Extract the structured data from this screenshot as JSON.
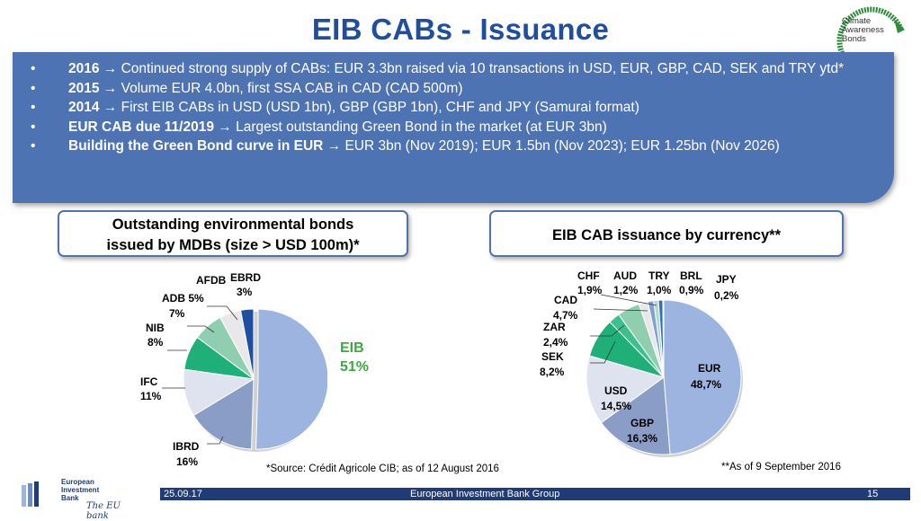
{
  "slide": {
    "title": "EIB CABs - Issuance",
    "logo": {
      "line1": "Climate",
      "line2": "Awareness",
      "line3": "Bonds"
    }
  },
  "bullets": [
    {
      "bold": "2016 →",
      "text": " Continued strong supply of CABs: EUR 3.3bn raised via 10 transactions in USD, EUR, GBP, CAD, SEK and TRY ytd*"
    },
    {
      "bold": "2015 →",
      "text": " Volume EUR 4.0bn, first SSA CAB in CAD (CAD 500m)"
    },
    {
      "bold": "2014 →",
      "text": " First EIB CABs in USD (USD 1bn), GBP (GBP 1bn), CHF and JPY (Samurai format)"
    },
    {
      "bold": "EUR CAB due 11/2019 →",
      "text": " Largest outstanding Green Bond in the market (at EUR 3bn)"
    },
    {
      "bold": "Building the Green Bond curve in EUR →",
      "text": " EUR 3bn (Nov 2019); EUR 1.5bn (Nov 2023); EUR 1.25bn (Nov 2026)"
    }
  ],
  "left_box": {
    "line1": "Outstanding environmental bonds",
    "line2": "issued by MDBs (size > USD 100m)*"
  },
  "right_box": {
    "title": "EIB CAB issuance by currency**"
  },
  "chart_data": [
    {
      "type": "pie",
      "title": "Outstanding environmental bonds issued by MDBs (size > USD 100m)*",
      "slices": [
        {
          "label": "EIB",
          "value": 51,
          "display": "51%",
          "color": "#9db3e0"
        },
        {
          "label": "IBRD",
          "value": 16,
          "display": "16%",
          "color": "#8a9dc7"
        },
        {
          "label": "IFC",
          "value": 11,
          "display": "11%",
          "color": "#dfe3ef"
        },
        {
          "label": "NIB",
          "value": 8,
          "display": "8%",
          "color": "#1fb07a"
        },
        {
          "label": "ADB",
          "value": 7,
          "display": "7%",
          "color": "#8fcfb0"
        },
        {
          "label": "AFDB",
          "value": 5,
          "display": "5%",
          "color": "#e8e8e8"
        },
        {
          "label": "EBRD",
          "value": 3,
          "display": "3%",
          "color": "#1f4fa0"
        }
      ]
    },
    {
      "type": "pie",
      "title": "EIB CAB issuance by currency**",
      "slices": [
        {
          "label": "EUR",
          "value": 48.7,
          "display": "48,7%",
          "color": "#9db3e0"
        },
        {
          "label": "GBP",
          "value": 16.3,
          "display": "16,3%",
          "color": "#8a9dc7"
        },
        {
          "label": "USD",
          "value": 14.5,
          "display": "14,5%",
          "color": "#dfe3ef"
        },
        {
          "label": "SEK",
          "value": 8.2,
          "display": "8,2%",
          "color": "#1fb07a"
        },
        {
          "label": "ZAR",
          "value": 2.4,
          "display": "2,4%",
          "color": "#3fbf8f"
        },
        {
          "label": "CAD",
          "value": 4.7,
          "display": "4,7%",
          "color": "#8fcfb0"
        },
        {
          "label": "CHF",
          "value": 1.9,
          "display": "1,9%",
          "color": "#e8e8e8"
        },
        {
          "label": "AUD",
          "value": 1.2,
          "display": "1,2%",
          "color": "#7fa0d8"
        },
        {
          "label": "TRY",
          "value": 1.0,
          "display": "1,0%",
          "color": "#b7d9c7"
        },
        {
          "label": "BRL",
          "value": 0.9,
          "display": "0,9%",
          "color": "#2c6fbf"
        },
        {
          "label": "JPY",
          "value": 0.2,
          "display": "0,2%",
          "color": "#1f3c78"
        }
      ]
    }
  ],
  "notes": {
    "source": "*Source: Crédit Agricole CIB; as of 12 August 2016",
    "asof": "**As of 9 September 2016"
  },
  "footer": {
    "date": "25.09.17",
    "org": "European Investment Bank Group",
    "page": "15"
  },
  "eib_logo": {
    "line1": "European",
    "line2": "Investment",
    "line3": "Bank",
    "tagline": "The EU bank"
  }
}
